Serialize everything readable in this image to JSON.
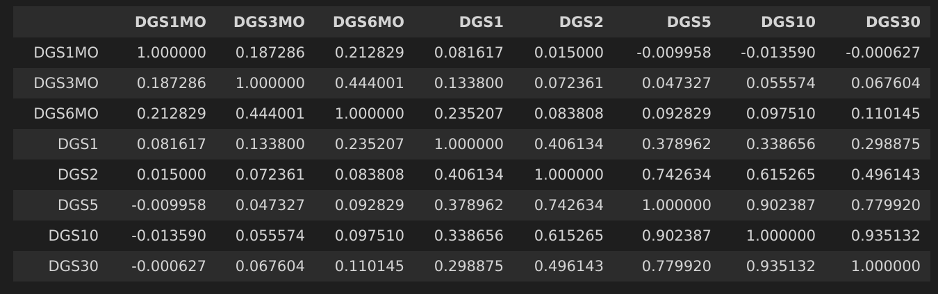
{
  "table": {
    "columns": [
      "DGS1MO",
      "DGS3MO",
      "DGS6MO",
      "DGS1",
      "DGS2",
      "DGS5",
      "DGS10",
      "DGS30"
    ],
    "rows": [
      {
        "index": "DGS1MO",
        "values": [
          "1.000000",
          "0.187286",
          "0.212829",
          "0.081617",
          "0.015000",
          "-0.009958",
          "-0.013590",
          "-0.000627"
        ]
      },
      {
        "index": "DGS3MO",
        "values": [
          "0.187286",
          "1.000000",
          "0.444001",
          "0.133800",
          "0.072361",
          "0.047327",
          "0.055574",
          "0.067604"
        ]
      },
      {
        "index": "DGS6MO",
        "values": [
          "0.212829",
          "0.444001",
          "1.000000",
          "0.235207",
          "0.083808",
          "0.092829",
          "0.097510",
          "0.110145"
        ]
      },
      {
        "index": "DGS1",
        "values": [
          "0.081617",
          "0.133800",
          "0.235207",
          "1.000000",
          "0.406134",
          "0.378962",
          "0.338656",
          "0.298875"
        ]
      },
      {
        "index": "DGS2",
        "values": [
          "0.015000",
          "0.072361",
          "0.083808",
          "0.406134",
          "1.000000",
          "0.742634",
          "0.615265",
          "0.496143"
        ]
      },
      {
        "index": "DGS5",
        "values": [
          "-0.009958",
          "0.047327",
          "0.092829",
          "0.378962",
          "0.742634",
          "1.000000",
          "0.902387",
          "0.779920"
        ]
      },
      {
        "index": "DGS10",
        "values": [
          "-0.013590",
          "0.055574",
          "0.097510",
          "0.338656",
          "0.615265",
          "0.902387",
          "1.000000",
          "0.935132"
        ]
      },
      {
        "index": "DGS30",
        "values": [
          "-0.000627",
          "0.067604",
          "0.110145",
          "0.298875",
          "0.496143",
          "0.779920",
          "0.935132",
          "1.000000"
        ]
      }
    ]
  },
  "colors": {
    "background": "#1e1e1e",
    "stripe": "#2c2c2c",
    "text": "#d4d4d4"
  }
}
